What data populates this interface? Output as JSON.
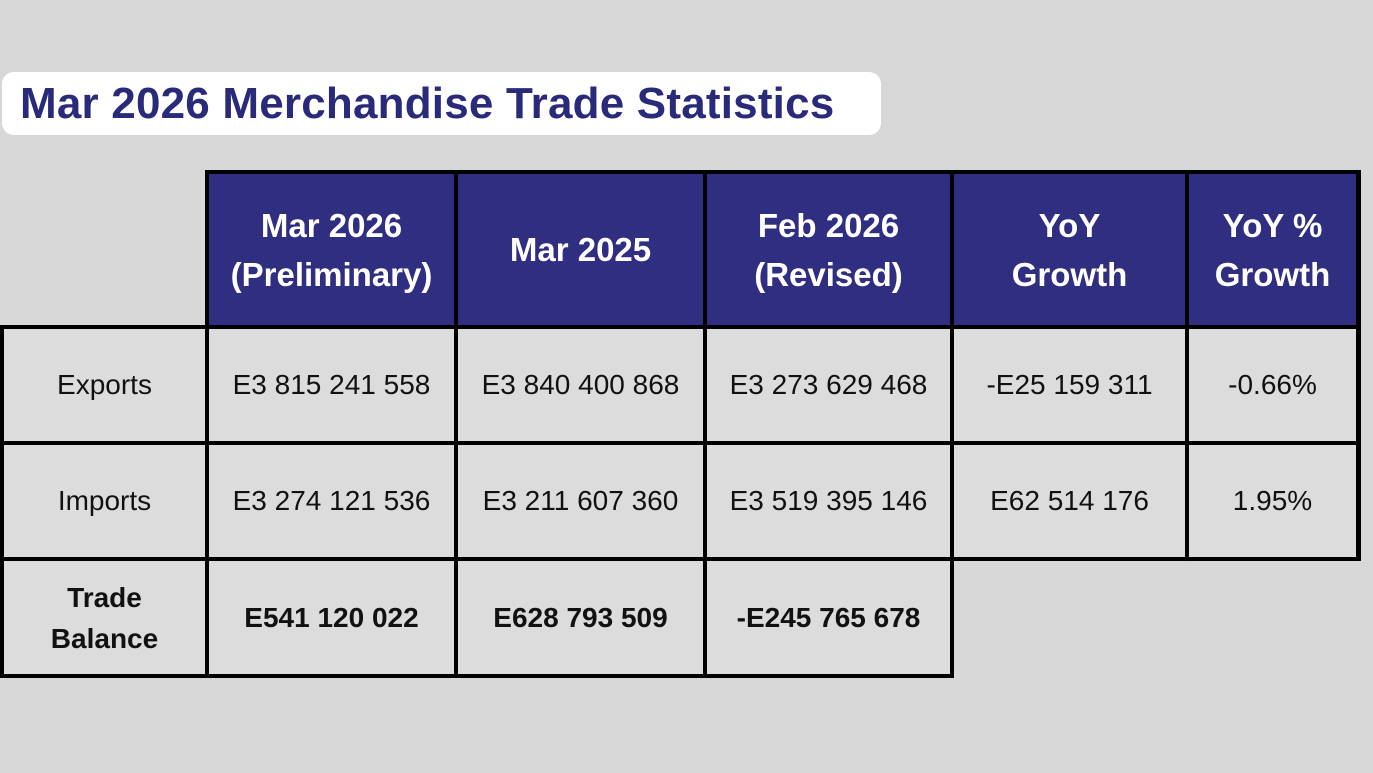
{
  "title": "Mar 2026 Merchandise Trade Statistics",
  "table": {
    "headers": [
      "",
      "Mar 2026\n(Preliminary)",
      "Mar 2025",
      "Feb 2026\n(Revised)",
      "YoY\nGrowth",
      "YoY %\nGrowth"
    ],
    "rows": [
      {
        "label": "Exports",
        "values": [
          "E3 815 241 558",
          "E3 840 400 868",
          "E3 273 629 468",
          "-E25 159 311",
          "-0.66%"
        ]
      },
      {
        "label": "Imports",
        "values": [
          "E3 274 121 536",
          "E3 211 607 360",
          "E3 519 395 146",
          "E62 514 176",
          "1.95%"
        ]
      },
      {
        "label": "Trade\nBalance",
        "values": [
          "E541 120 022",
          "E628 793 509",
          "-E245 765 678",
          "",
          ""
        ]
      }
    ]
  },
  "colors": {
    "background": "#d8d7d8",
    "header_bg": "#2f2e80",
    "title_text": "#2a2a7a"
  }
}
